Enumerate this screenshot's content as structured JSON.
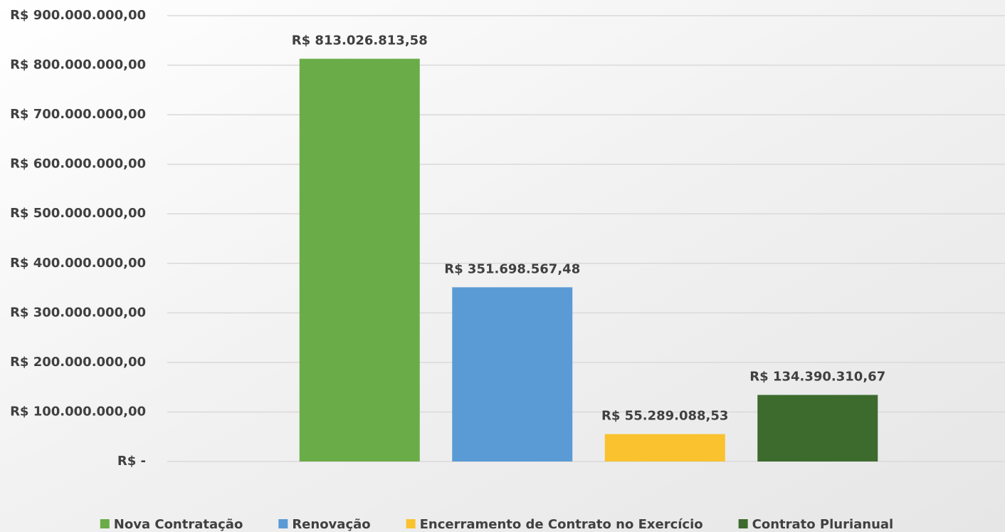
{
  "chart_data": {
    "type": "bar",
    "categories": [
      null
    ],
    "series": [
      {
        "name": "Nova Contratação",
        "color": "#6aac47",
        "values": [
          813026813.58
        ],
        "value_labels": [
          "R$ 813.026.813,58"
        ]
      },
      {
        "name": "Renovação",
        "color": "#5b9bd5",
        "values": [
          351698567.48
        ],
        "value_labels": [
          "R$ 351.698.567,48"
        ]
      },
      {
        "name": "Encerramento de Contrato no Exercício",
        "color": "#f9c22e",
        "values": [
          55289088.53
        ],
        "value_labels": [
          "R$ 55.289.088,53"
        ]
      },
      {
        "name": "Contrato Plurianual",
        "color": "#3c6b2d",
        "values": [
          134390310.67
        ],
        "value_labels": [
          "R$ 134.390.310,67"
        ]
      }
    ],
    "ylim": [
      0,
      900000000
    ],
    "yticks": [
      {
        "value": 0,
        "label": "R$ -"
      },
      {
        "value": 100000000,
        "label": "R$ 100.000.000,00"
      },
      {
        "value": 200000000,
        "label": "R$ 200.000.000,00"
      },
      {
        "value": 300000000,
        "label": "R$ 300.000.000,00"
      },
      {
        "value": 400000000,
        "label": "R$ 400.000.000,00"
      },
      {
        "value": 500000000,
        "label": "R$ 500.000.000,00"
      },
      {
        "value": 600000000,
        "label": "R$ 600.000.000,00"
      },
      {
        "value": 700000000,
        "label": "R$ 700.000.000,00"
      },
      {
        "value": 800000000,
        "label": "R$ 800.000.000,00"
      },
      {
        "value": 900000000,
        "label": "R$ 900.000.000,00"
      }
    ],
    "grid": true,
    "legend": "bottom"
  }
}
